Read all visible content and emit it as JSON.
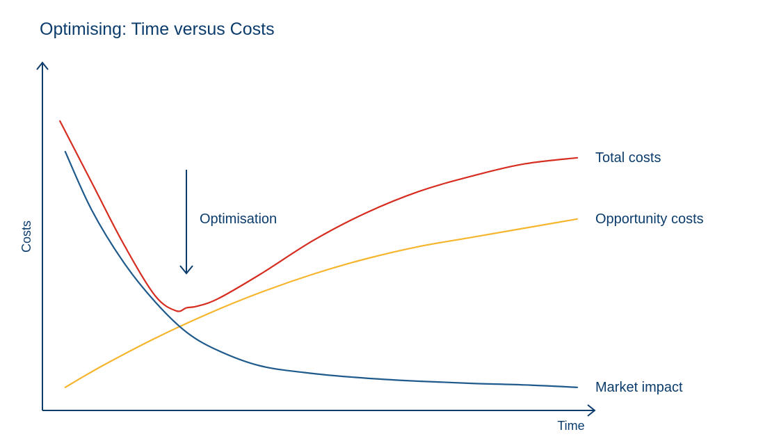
{
  "chart_data": {
    "type": "line",
    "title": "Optimising: Time versus Costs",
    "xlabel": "Time",
    "ylabel": "Costs",
    "xlim": [
      0,
      100
    ],
    "ylim": [
      0,
      100
    ],
    "grid": false,
    "series": [
      {
        "name": "Total costs",
        "color": "#d62d20",
        "x": [
          2,
          8,
          14,
          20,
          24,
          26,
          28,
          32,
          40,
          50,
          60,
          70,
          80,
          90,
          100
        ],
        "y": [
          90,
          70,
          50,
          33,
          28,
          29,
          29.5,
          32,
          40,
          51,
          60,
          67,
          72,
          76,
          78
        ]
      },
      {
        "name": "Opportunity costs",
        "color": "#f5b52d",
        "x": [
          3,
          10,
          20,
          30,
          40,
          50,
          60,
          70,
          80,
          90,
          100
        ],
        "y": [
          3,
          10,
          19,
          27,
          34,
          40,
          45,
          49,
          52,
          55,
          58
        ]
      },
      {
        "name": "Market impact",
        "color": "#1f5a8c",
        "x": [
          3,
          8,
          14,
          20,
          26,
          32,
          40,
          50,
          60,
          70,
          80,
          90,
          100
        ],
        "y": [
          80,
          61,
          44,
          31,
          21,
          15,
          10,
          7.5,
          6,
          5,
          4.3,
          3.8,
          3
        ]
      }
    ],
    "annotations": [
      {
        "text": "Optimisation",
        "points_to_x": 27,
        "type": "downward-arrow"
      }
    ]
  }
}
